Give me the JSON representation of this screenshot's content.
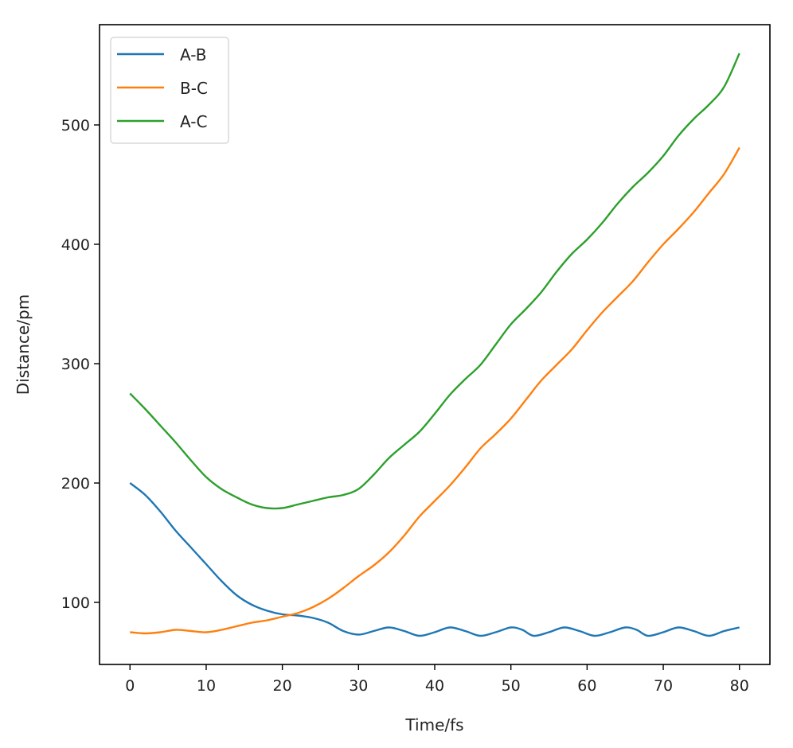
{
  "chart_data": {
    "type": "line",
    "title": "",
    "xlabel": "Time/fs",
    "ylabel": "Distance/pm",
    "xlim": [
      -4,
      84
    ],
    "ylim": [
      48,
      584
    ],
    "xticks": [
      0,
      10,
      20,
      30,
      40,
      50,
      60,
      70,
      80
    ],
    "yticks": [
      100,
      200,
      300,
      400,
      500
    ],
    "grid": false,
    "legend": "top-left",
    "series": [
      {
        "name": "A-B",
        "color": "#1f77b4",
        "x": [
          0,
          2,
          4,
          6,
          8,
          10,
          12,
          14,
          16,
          18,
          20,
          22,
          24,
          26,
          28,
          30,
          32,
          34,
          36,
          38,
          40,
          42,
          44,
          46,
          48,
          50,
          51.5,
          53,
          55,
          57,
          59,
          61,
          63,
          65,
          66.5,
          68,
          70,
          72,
          74,
          76,
          78,
          80
        ],
        "y": [
          200,
          190,
          176,
          160,
          146,
          132,
          118,
          106,
          98,
          93,
          90,
          89,
          87,
          83,
          76,
          73,
          76,
          79,
          76,
          72,
          75,
          79,
          76,
          72,
          75,
          79,
          77,
          72,
          75,
          79,
          76,
          72,
          75,
          79,
          77,
          72,
          75,
          79,
          76,
          72,
          76,
          79
        ]
      },
      {
        "name": "B-C",
        "color": "#ff7f0e",
        "x": [
          0,
          2,
          4,
          6,
          8,
          10,
          12,
          14,
          16,
          18,
          20,
          22,
          24,
          26,
          28,
          30,
          32,
          34,
          36,
          38,
          40,
          42,
          44,
          46,
          48,
          50,
          52,
          54,
          56,
          58,
          60,
          62,
          64,
          66,
          68,
          70,
          72,
          74,
          76,
          78,
          80
        ],
        "y": [
          75,
          74,
          75,
          77,
          76,
          75,
          77,
          80,
          83,
          85,
          88,
          91,
          96,
          103,
          112,
          122,
          131,
          142,
          156,
          172,
          185,
          198,
          213,
          229,
          241,
          254,
          270,
          286,
          299,
          312,
          328,
          343,
          356,
          369,
          385,
          400,
          413,
          427,
          443,
          459,
          481
        ]
      },
      {
        "name": "A-C",
        "color": "#2ca02c",
        "x": [
          0,
          2,
          4,
          6,
          8,
          10,
          12,
          14,
          16,
          18,
          20,
          22,
          24,
          26,
          28,
          30,
          32,
          34,
          36,
          38,
          40,
          42,
          44,
          46,
          48,
          50,
          52,
          54,
          56,
          58,
          60,
          62,
          64,
          66,
          68,
          70,
          72,
          74,
          76,
          78,
          80
        ],
        "y": [
          275,
          262,
          248,
          234,
          219,
          205,
          195,
          188,
          182,
          179,
          179,
          182,
          185,
          188,
          190,
          195,
          207,
          221,
          232,
          243,
          258,
          274,
          287,
          299,
          316,
          333,
          346,
          360,
          377,
          392,
          404,
          418,
          434,
          448,
          460,
          474,
          491,
          505,
          517,
          532,
          560
        ]
      }
    ]
  }
}
